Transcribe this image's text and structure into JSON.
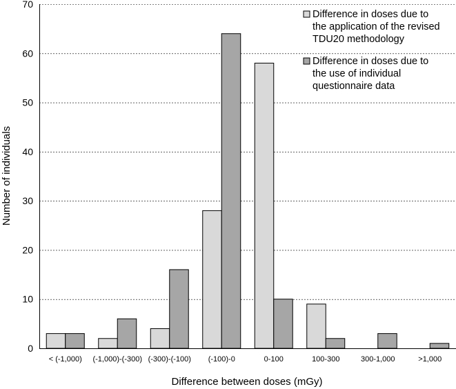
{
  "chart_data": {
    "type": "bar",
    "categories": [
      "< (-1,000)",
      "(-1,000)-(-300)",
      "(-300)-(-100)",
      "(-100)-0",
      "0-100",
      "100-300",
      "300-1,000",
      ">1,000"
    ],
    "series": [
      {
        "name": "Difference in doses due to the application of the revised TDU20 methodology",
        "name_lines": [
          "Difference in doses due to",
          "the application of the revised",
          "TDU20 methodology"
        ],
        "color": "#d9d9d9",
        "values": [
          3,
          2,
          4,
          28,
          58,
          9,
          0,
          0
        ]
      },
      {
        "name": "Difference in doses due to the use of individual questionnaire data",
        "name_lines": [
          "Difference in doses due to",
          "the use of individual",
          "questionnaire data"
        ],
        "color": "#a6a6a6",
        "values": [
          3,
          6,
          16,
          64,
          10,
          2,
          3,
          1
        ]
      }
    ],
    "xlabel": "Difference between doses (mGy)",
    "ylabel": "Number of individuals",
    "ylim": [
      0,
      70
    ],
    "yticks": [
      0,
      10,
      20,
      30,
      40,
      50,
      60,
      70
    ],
    "grid": "horizontal-dashed",
    "legend": "top-right"
  }
}
